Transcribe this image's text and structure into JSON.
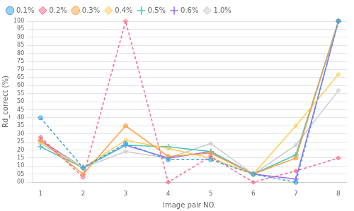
{
  "chart_data": {
    "type": "line",
    "x": [
      1,
      2,
      3,
      4,
      5,
      6,
      7,
      8
    ],
    "xlabel": "Image pair NO.",
    "ylabel": "Rd_correct (%)",
    "xlim": [
      0.8,
      8.2
    ],
    "xticks": [
      1,
      2,
      3,
      4,
      5,
      6,
      7,
      8
    ],
    "ylim": [
      0,
      100
    ],
    "yticks": [
      {
        "value": 0,
        "label": "00"
      },
      {
        "value": 5,
        "label": "05"
      },
      10,
      15,
      20,
      25,
      30,
      35,
      40,
      45,
      50,
      55,
      60,
      65,
      70,
      75,
      80,
      85,
      90,
      95,
      100
    ],
    "grid": "y",
    "legend": "upper left",
    "series": [
      {
        "name": "0.1%",
        "values": [
          40,
          9,
          24,
          14,
          14,
          5,
          0,
          100
        ],
        "marker": "circle",
        "line_style": "dashed"
      },
      {
        "name": "0.2%",
        "values": [
          28,
          3,
          100,
          0,
          16,
          0,
          7,
          15
        ],
        "marker": "diamond",
        "line_style": "dashed"
      },
      {
        "name": "0.3%",
        "values": [
          26,
          5,
          35,
          16,
          18,
          5,
          15,
          100
        ],
        "marker": "circle",
        "line_style": "solid"
      },
      {
        "name": "0.4%",
        "values": [
          25,
          9,
          26,
          21,
          15,
          5,
          35,
          67
        ],
        "marker": "diamond",
        "line_style": "solid"
      },
      {
        "name": "0.5%",
        "values": [
          22,
          9,
          23,
          22,
          19,
          5,
          17,
          100
        ],
        "marker": "plus",
        "line_style": "solid"
      },
      {
        "name": "0.6%",
        "values": [
          26,
          9,
          23,
          15,
          19,
          5,
          2,
          100
        ],
        "marker": "plus",
        "line_style": "solid"
      },
      {
        "name": "1.0%",
        "values": [
          24,
          9,
          19,
          15,
          24,
          5,
          23,
          57
        ],
        "marker": "diamond",
        "line_style": "solid"
      }
    ]
  }
}
